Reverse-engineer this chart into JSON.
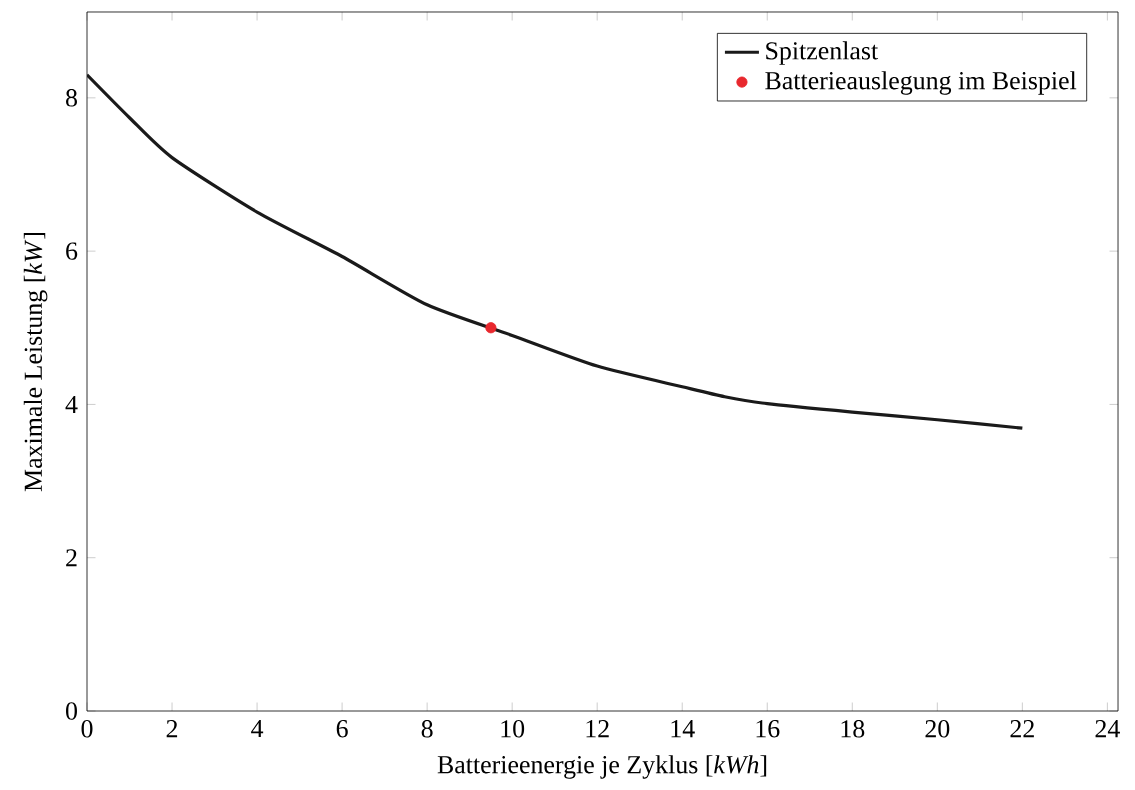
{
  "chart_data": {
    "type": "line",
    "xlabel": "Batterieenergie je Zyklus [*kWh*]",
    "ylabel": "Maximale Leistung [*kW*]",
    "xlim": [
      0,
      24.25
    ],
    "ylim": [
      0,
      9.12
    ],
    "xticks": [
      0,
      2,
      4,
      6,
      8,
      10,
      12,
      14,
      16,
      18,
      20,
      22,
      24
    ],
    "yticks": [
      0,
      2,
      4,
      6,
      8
    ],
    "legend": "top right",
    "series": [
      {
        "name": "Spitzenlast",
        "color": "#1a1a1a",
        "marker": "none",
        "line_style": "solid",
        "x": [
          0,
          1,
          2,
          4,
          6,
          8,
          10,
          12,
          14,
          15,
          16,
          18,
          20,
          22
        ],
        "values": [
          8.3,
          7.74,
          7.22,
          6.51,
          5.93,
          5.3,
          4.9,
          4.5,
          4.23,
          4.1,
          4.01,
          3.9,
          3.8,
          3.69
        ]
      },
      {
        "name": "Batterieauslegung im Beispiel",
        "type": "scatter",
        "color": "#e8282e",
        "marker": "circle",
        "x": [
          9.5
        ],
        "values": [
          5.0
        ]
      }
    ]
  }
}
